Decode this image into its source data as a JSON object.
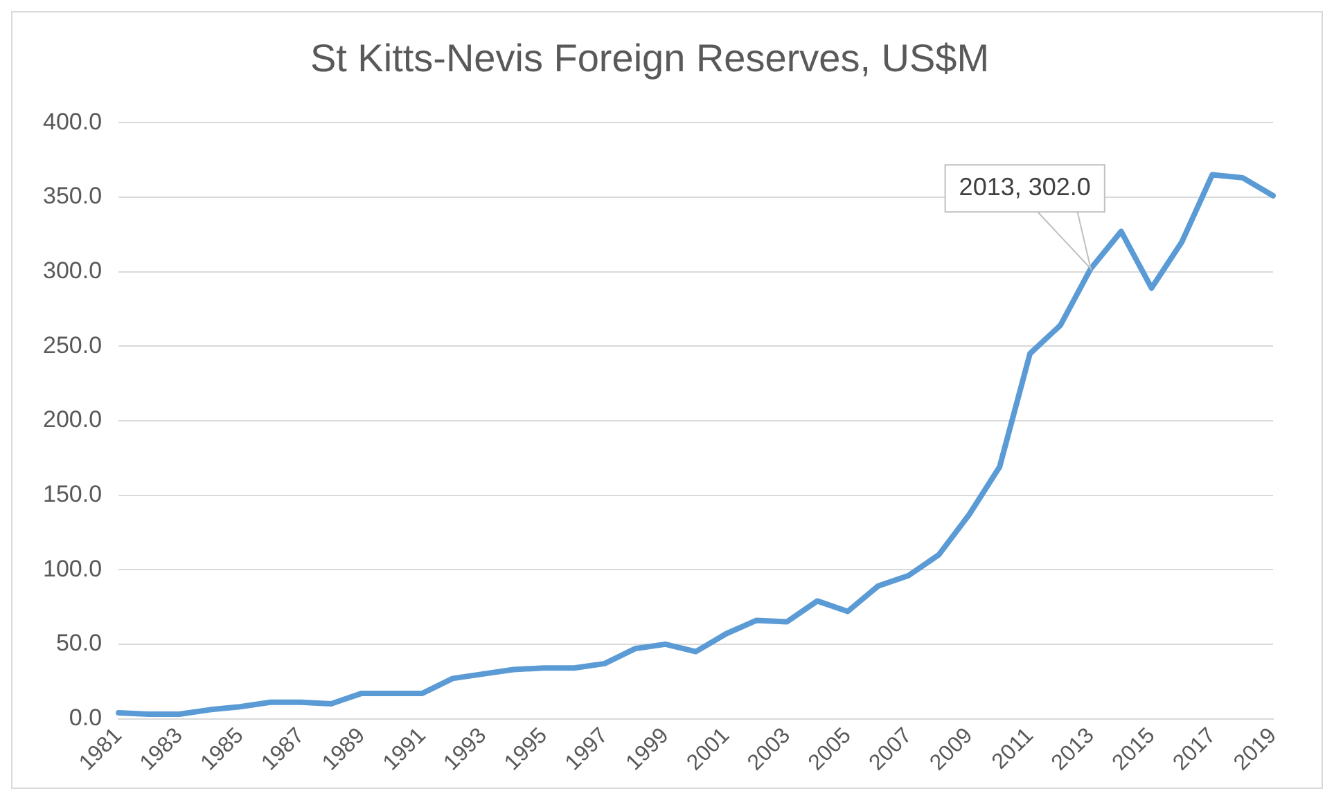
{
  "chart_data": {
    "type": "line",
    "title": "St Kitts-Nevis Foreign Reserves, US$M",
    "categories": [
      "1981",
      null,
      "1983",
      null,
      "1985",
      null,
      "1987",
      null,
      "1989",
      null,
      "1991",
      null,
      "1993",
      null,
      "1995",
      null,
      "1997",
      null,
      "1999",
      null,
      "2001",
      null,
      "2003",
      null,
      "2005",
      null,
      "2007",
      null,
      "2009",
      null,
      "2011",
      null,
      "2013",
      null,
      "2015",
      null,
      "2017",
      null,
      "2019"
    ],
    "series": [
      {
        "color": "#5b9bd5",
        "values": [
          4,
          3,
          3,
          6,
          8,
          11,
          11,
          10,
          17,
          17,
          17,
          27,
          30,
          33,
          34,
          34,
          37,
          47,
          50,
          45,
          57,
          66,
          65,
          79,
          72,
          89,
          96,
          110,
          137,
          169,
          245,
          264,
          302,
          327,
          289,
          320,
          365,
          363,
          351
        ]
      }
    ],
    "ylim": [
      0,
      400
    ],
    "yticks": [
      {
        "value": 0,
        "label": "0.0"
      },
      {
        "value": 50,
        "label": "50.0"
      },
      {
        "value": 100,
        "label": "100.0"
      },
      {
        "value": 150,
        "label": "150.0"
      },
      {
        "value": 200,
        "label": "200.0"
      },
      {
        "value": 250,
        "label": "250.0"
      },
      {
        "value": 300,
        "label": "300.0"
      },
      {
        "value": 350,
        "label": "350.0"
      },
      {
        "value": 400,
        "label": "400.0"
      }
    ],
    "grid": "y",
    "legend": false,
    "marker": "none",
    "line_style": "solid",
    "annotations": [
      {
        "text": "2013, 302.0",
        "x": "2013",
        "y": 302
      }
    ]
  }
}
